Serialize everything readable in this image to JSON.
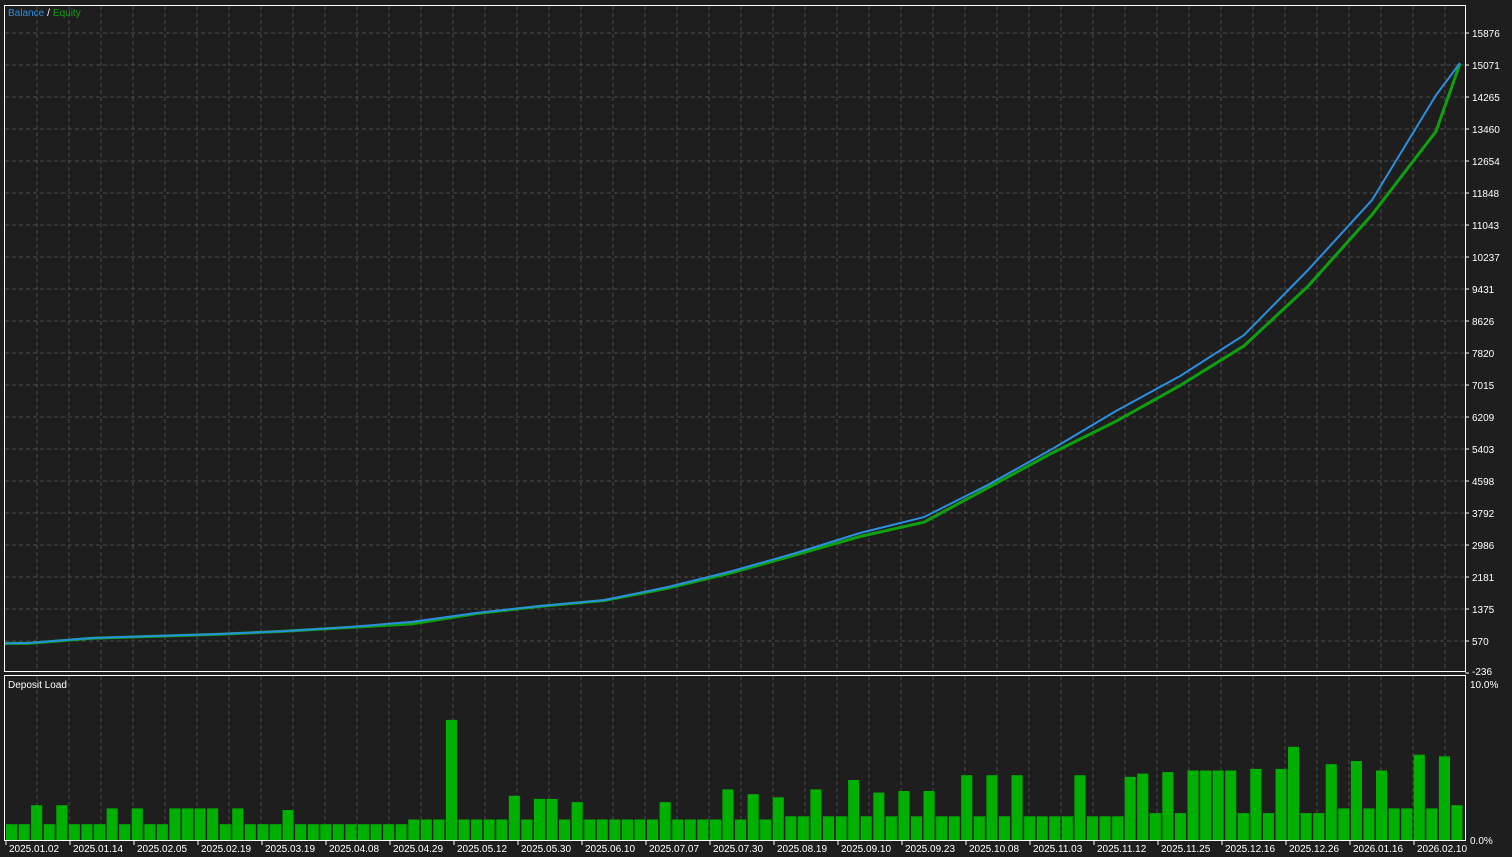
{
  "chart_data": [
    {
      "type": "line",
      "legend": {
        "balance_label": "Balance",
        "separator": "/",
        "equity_label": "Equity",
        "placement": "top-left"
      },
      "x_ticks": [
        "2025.01.02",
        "2025.01.14",
        "2025.02.05",
        "2025.02.19",
        "2025.03.19",
        "2025.04.08",
        "2025.04.29",
        "2025.05.12",
        "2025.05.30",
        "2025.06.10",
        "2025.07.07",
        "2025.07.30",
        "2025.08.19",
        "2025.09.10",
        "2025.09.23",
        "2025.10.08",
        "2025.11.03",
        "2025.11.12",
        "2025.11.25",
        "2025.12.16",
        "2025.12.26",
        "2026.01.16",
        "2026.02.10"
      ],
      "y_ticks": [
        "15876",
        "15071",
        "14265",
        "13460",
        "12654",
        "11848",
        "11043",
        "10237",
        "9431",
        "8626",
        "7820",
        "7015",
        "6209",
        "5403",
        "4598",
        "3792",
        "2986",
        "2181",
        "1375",
        "570",
        "-236"
      ],
      "ylim": [
        -236,
        16681
      ],
      "grid": true,
      "series": [
        {
          "name": "Balance",
          "color": "#2b8fe0",
          "values": [
            520,
            645,
            695,
            745,
            820,
            920,
            1050,
            1275,
            1450,
            1600,
            1930,
            2330,
            2785,
            3290,
            3690,
            4500,
            5400,
            6360,
            7240,
            8270,
            9910,
            11670,
            14310,
            15120
          ]
        },
        {
          "name": "Equity",
          "color": "#0fa00f",
          "values": [
            510,
            640,
            690,
            740,
            815,
            910,
            1000,
            1260,
            1440,
            1590,
            1900,
            2290,
            2740,
            3200,
            3560,
            4430,
            5300,
            6100,
            7000,
            8000,
            9500,
            11300,
            13400,
            15100
          ]
        }
      ]
    },
    {
      "type": "bar",
      "title": "Deposit Load",
      "y_ticks": [
        "10.0%",
        "0.0%"
      ],
      "ylim": [
        0,
        10
      ],
      "color": "#00b000",
      "values": [
        1.0,
        1.0,
        2.2,
        1.0,
        2.2,
        1.0,
        1.0,
        1.0,
        2.0,
        1.0,
        2.0,
        1.0,
        1.0,
        2.0,
        2.0,
        2.0,
        2.0,
        1.0,
        2.0,
        1.0,
        1.0,
        1.0,
        1.9,
        1.0,
        1.0,
        1.0,
        1.0,
        1.0,
        1.0,
        1.0,
        1.0,
        1.0,
        1.3,
        1.3,
        1.3,
        7.6,
        1.3,
        1.3,
        1.3,
        1.3,
        2.8,
        1.3,
        2.6,
        2.6,
        1.3,
        2.4,
        1.3,
        1.3,
        1.3,
        1.3,
        1.3,
        1.3,
        2.4,
        1.3,
        1.3,
        1.3,
        1.3,
        3.2,
        1.3,
        2.9,
        1.3,
        2.7,
        1.5,
        1.5,
        3.2,
        1.5,
        1.5,
        3.8,
        1.5,
        3.0,
        1.5,
        3.1,
        1.5,
        3.1,
        1.5,
        1.5,
        4.1,
        1.5,
        4.1,
        1.5,
        4.1,
        1.5,
        1.5,
        1.5,
        1.5,
        4.1,
        1.5,
        1.5,
        1.5,
        4.0,
        4.2,
        1.7,
        4.3,
        1.7,
        4.4,
        4.4,
        4.4,
        4.4,
        1.7,
        4.5,
        1.7,
        4.5,
        5.9,
        1.7,
        1.7,
        4.8,
        2.0,
        5.0,
        2.0,
        4.4,
        2.0,
        2.0,
        5.4,
        2.0,
        5.3,
        2.2
      ]
    }
  ]
}
